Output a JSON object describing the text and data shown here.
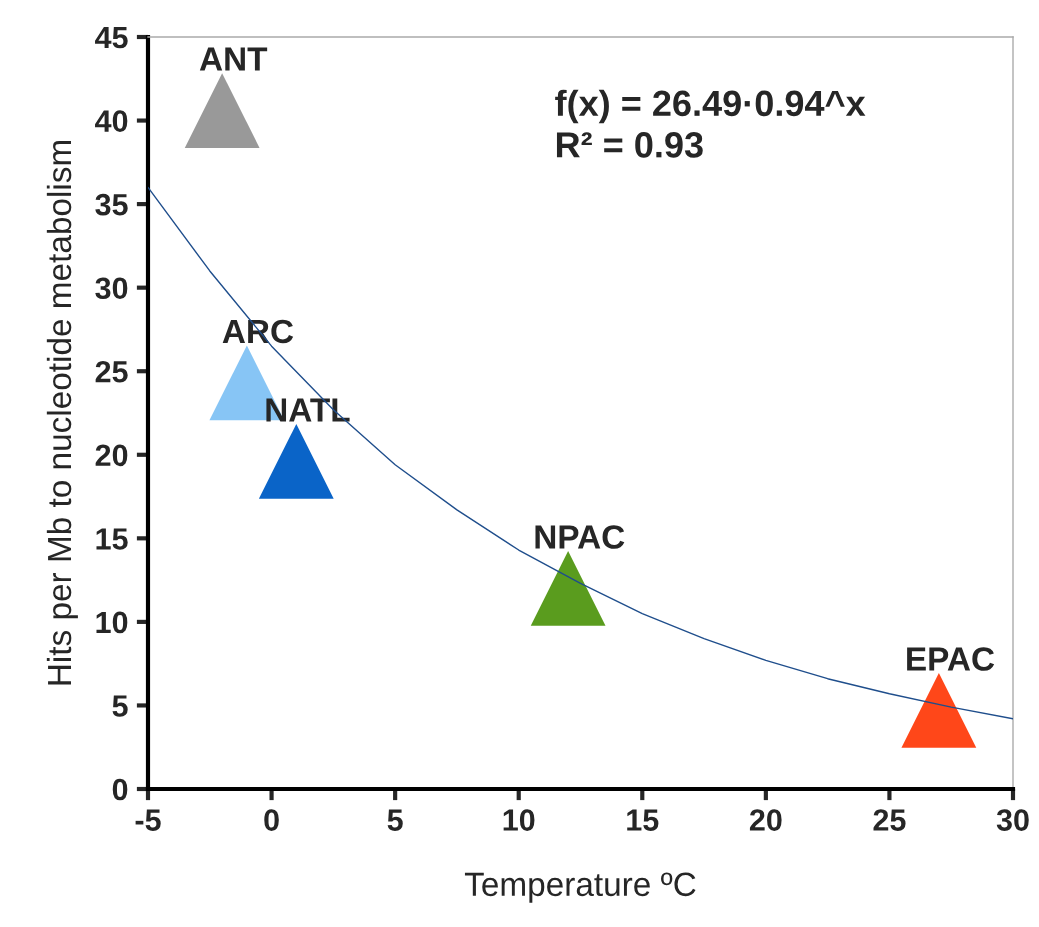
{
  "chart_data": {
    "type": "scatter",
    "xlabel": "Temperature ºC",
    "ylabel": "Hits per Mb to nucleotide metabolism",
    "xlim": [
      -5,
      30
    ],
    "ylim": [
      0,
      45
    ],
    "xticks": [
      -5,
      0,
      5,
      10,
      15,
      20,
      25,
      30
    ],
    "yticks": [
      0,
      5,
      10,
      15,
      20,
      25,
      30,
      35,
      40,
      45
    ],
    "grid": false,
    "legend": false,
    "marker": "triangle",
    "series": [
      {
        "name": "ANT",
        "color": "#999999",
        "x": [
          -2
        ],
        "values": [
          40.6
        ]
      },
      {
        "name": "ARC",
        "color": "#87c5f5",
        "x": [
          -1
        ],
        "values": [
          24.3
        ]
      },
      {
        "name": "NATL",
        "color": "#0a64c8",
        "x": [
          1
        ],
        "values": [
          19.6
        ]
      },
      {
        "name": "NPAC",
        "color": "#5a9c1e",
        "x": [
          12
        ],
        "values": [
          12.0
        ]
      },
      {
        "name": "EPAC",
        "color": "#ff4719",
        "x": [
          27
        ],
        "values": [
          4.7
        ]
      },
      {
        "type": "line",
        "color": "#1f4e8c",
        "marker": "none",
        "x": [
          -5,
          -2.5,
          0,
          2.5,
          5,
          7.5,
          10,
          12.5,
          15,
          17.5,
          20,
          22.5,
          25,
          27.5,
          30
        ],
        "values": [
          36,
          31.0,
          26.5,
          22.7,
          19.4,
          16.7,
          14.3,
          12.3,
          10.5,
          9.0,
          7.7,
          6.6,
          5.7,
          4.9,
          4.2
        ]
      }
    ],
    "annotations": [
      "f(x) = 26.49·0.94^x\nR² = 0.93"
    ]
  }
}
